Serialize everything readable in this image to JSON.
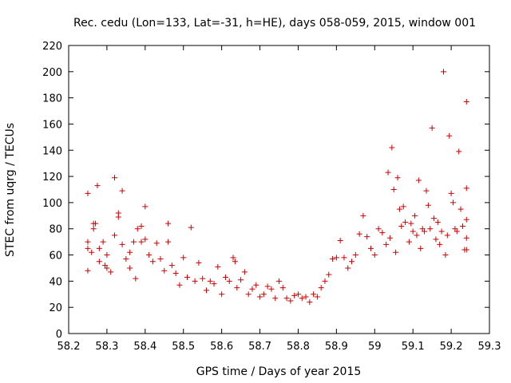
{
  "chart_data": {
    "type": "scatter",
    "title": "Rec. cedu (Lon=133, Lat=-31, h=HE), days 058-059, 2015, window 001",
    "xlabel": "GPS time / Days of year 2015",
    "ylabel": "STEC from uqrg / TECUs",
    "xlim": [
      58.2,
      59.3
    ],
    "ylim": [
      0,
      220
    ],
    "xticks": [
      58.2,
      58.3,
      58.4,
      58.5,
      58.6,
      58.7,
      58.8,
      58.9,
      59.0,
      59.1,
      59.2,
      59.3
    ],
    "xtick_labels": [
      "58.2",
      "58.3",
      "58.4",
      "58.5",
      "58.6",
      "58.7",
      "58.8",
      "58.9",
      "59",
      "59.1",
      "59.2",
      "59.3"
    ],
    "yticks": [
      0,
      20,
      40,
      60,
      80,
      100,
      120,
      140,
      160,
      180,
      200,
      220
    ],
    "ytick_labels": [
      "0",
      "20",
      "40",
      "60",
      "80",
      "100",
      "120",
      "140",
      "160",
      "180",
      "200",
      "220"
    ],
    "grid": false,
    "marker": "+",
    "color": "#cc0000",
    "series": [
      {
        "points": [
          [
            58.25,
            107
          ],
          [
            58.25,
            70
          ],
          [
            58.25,
            65
          ],
          [
            58.25,
            48
          ],
          [
            58.26,
            62
          ],
          [
            58.265,
            84
          ],
          [
            58.265,
            80
          ],
          [
            58.27,
            84
          ],
          [
            58.275,
            113
          ],
          [
            58.28,
            65
          ],
          [
            58.28,
            55
          ],
          [
            58.29,
            70
          ],
          [
            58.295,
            52
          ],
          [
            58.3,
            60
          ],
          [
            58.3,
            50
          ],
          [
            58.31,
            47
          ],
          [
            58.32,
            119
          ],
          [
            58.32,
            75
          ],
          [
            58.33,
            92
          ],
          [
            58.33,
            89
          ],
          [
            58.34,
            109
          ],
          [
            58.34,
            68
          ],
          [
            58.35,
            57
          ],
          [
            58.36,
            62
          ],
          [
            58.36,
            50
          ],
          [
            58.37,
            70
          ],
          [
            58.375,
            42
          ],
          [
            58.38,
            80
          ],
          [
            58.39,
            82
          ],
          [
            58.39,
            70
          ],
          [
            58.4,
            97
          ],
          [
            58.4,
            72
          ],
          [
            58.41,
            60
          ],
          [
            58.42,
            55
          ],
          [
            58.43,
            69
          ],
          [
            58.44,
            57
          ],
          [
            58.45,
            48
          ],
          [
            58.46,
            84
          ],
          [
            58.46,
            70
          ],
          [
            58.47,
            52
          ],
          [
            58.48,
            46
          ],
          [
            58.49,
            37
          ],
          [
            58.5,
            58
          ],
          [
            58.51,
            43
          ],
          [
            58.52,
            81
          ],
          [
            58.53,
            40
          ],
          [
            58.54,
            54
          ],
          [
            58.55,
            42
          ],
          [
            58.56,
            33
          ],
          [
            58.57,
            40
          ],
          [
            58.58,
            38
          ],
          [
            58.59,
            51
          ],
          [
            58.6,
            30
          ],
          [
            58.61,
            43
          ],
          [
            58.62,
            40
          ],
          [
            58.63,
            58
          ],
          [
            58.635,
            55
          ],
          [
            58.64,
            35
          ],
          [
            58.65,
            41
          ],
          [
            58.66,
            47
          ],
          [
            58.67,
            30
          ],
          [
            58.68,
            34
          ],
          [
            58.69,
            37
          ],
          [
            58.7,
            28
          ],
          [
            58.71,
            30
          ],
          [
            58.72,
            36
          ],
          [
            58.73,
            34
          ],
          [
            58.74,
            27
          ],
          [
            58.75,
            40
          ],
          [
            58.76,
            35
          ],
          [
            58.77,
            27
          ],
          [
            58.78,
            25
          ],
          [
            58.79,
            29
          ],
          [
            58.8,
            30
          ],
          [
            58.81,
            27
          ],
          [
            58.82,
            28
          ],
          [
            58.83,
            24
          ],
          [
            58.84,
            30
          ],
          [
            58.85,
            28
          ],
          [
            58.86,
            35
          ],
          [
            58.87,
            40
          ],
          [
            58.88,
            45
          ],
          [
            58.89,
            57
          ],
          [
            58.9,
            58
          ],
          [
            58.91,
            71
          ],
          [
            58.92,
            58
          ],
          [
            58.93,
            50
          ],
          [
            58.94,
            55
          ],
          [
            58.95,
            60
          ],
          [
            58.96,
            76
          ],
          [
            58.97,
            90
          ],
          [
            58.98,
            74
          ],
          [
            58.99,
            65
          ],
          [
            59.0,
            60
          ],
          [
            59.01,
            80
          ],
          [
            59.02,
            77
          ],
          [
            59.03,
            68
          ],
          [
            59.035,
            123
          ],
          [
            59.04,
            73
          ],
          [
            59.045,
            142
          ],
          [
            59.05,
            110
          ],
          [
            59.055,
            62
          ],
          [
            59.06,
            119
          ],
          [
            59.065,
            95
          ],
          [
            59.07,
            82
          ],
          [
            59.075,
            97
          ],
          [
            59.08,
            85
          ],
          [
            59.09,
            70
          ],
          [
            59.095,
            84
          ],
          [
            59.1,
            78
          ],
          [
            59.105,
            90
          ],
          [
            59.11,
            75
          ],
          [
            59.115,
            117
          ],
          [
            59.12,
            65
          ],
          [
            59.125,
            80
          ],
          [
            59.13,
            78
          ],
          [
            59.135,
            109
          ],
          [
            59.14,
            98
          ],
          [
            59.145,
            80
          ],
          [
            59.15,
            157
          ],
          [
            59.155,
            88
          ],
          [
            59.16,
            72
          ],
          [
            59.165,
            85
          ],
          [
            59.17,
            68
          ],
          [
            59.175,
            78
          ],
          [
            59.18,
            200
          ],
          [
            59.185,
            60
          ],
          [
            59.19,
            75
          ],
          [
            59.195,
            151
          ],
          [
            59.2,
            107
          ],
          [
            59.205,
            100
          ],
          [
            59.21,
            80
          ],
          [
            59.215,
            78
          ],
          [
            59.22,
            139
          ],
          [
            59.225,
            95
          ],
          [
            59.23,
            82
          ],
          [
            59.235,
            64
          ],
          [
            59.24,
            177
          ],
          [
            59.24,
            111
          ],
          [
            59.24,
            87
          ],
          [
            59.24,
            73
          ],
          [
            59.24,
            64
          ]
        ]
      }
    ]
  }
}
